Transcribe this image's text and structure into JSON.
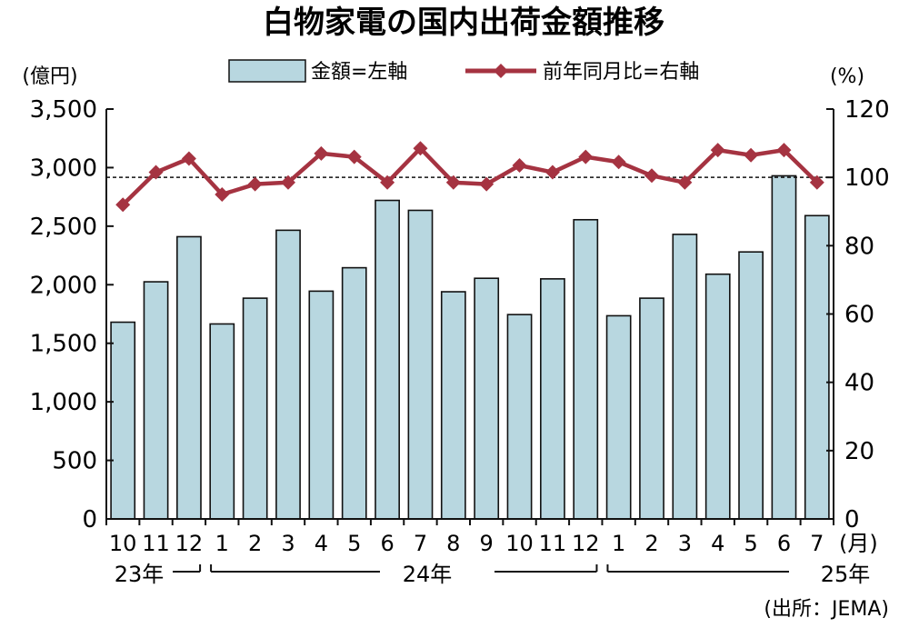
{
  "chart_data": {
    "type": "bar",
    "title": "白物家電の国内出荷金額推移",
    "left_unit": "(億円)",
    "right_unit": "(%)",
    "month_suffix": "(月)",
    "legend": [
      {
        "label": "金額=左軸",
        "kind": "bar",
        "color": "#b8d7e0"
      },
      {
        "label": "前年同月比=右軸",
        "kind": "line",
        "color": "#a53341"
      }
    ],
    "categories": [
      "10",
      "11",
      "12",
      "1",
      "2",
      "3",
      "4",
      "5",
      "6",
      "7",
      "8",
      "9",
      "10",
      "11",
      "12",
      "1",
      "2",
      "3",
      "4",
      "5",
      "6",
      "7"
    ],
    "year_labels": [
      "23年",
      "24年",
      "25年"
    ],
    "series": [
      {
        "name": "金額=左軸",
        "type": "bar",
        "axis": "left",
        "values": [
          1680,
          2025,
          2410,
          1665,
          1885,
          2465,
          1945,
          2145,
          2720,
          2635,
          1940,
          2055,
          1745,
          2050,
          2555,
          1735,
          1885,
          2430,
          2090,
          2280,
          2930,
          2590
        ]
      },
      {
        "name": "前年同月比=右軸",
        "type": "line",
        "axis": "right",
        "values": [
          92,
          101.5,
          105.5,
          95,
          98,
          98.5,
          107,
          106,
          98.5,
          108.5,
          98.5,
          98,
          103.5,
          101.5,
          106,
          104.5,
          100.5,
          98.5,
          108,
          106.5,
          108,
          98.5
        ]
      }
    ],
    "left_axis": {
      "ylim": [
        0,
        3500
      ],
      "ticks": [
        "0",
        "500",
        "1,000",
        "1,500",
        "2,000",
        "2,500",
        "3,000",
        "3,500"
      ]
    },
    "right_axis": {
      "ylim": [
        0,
        120
      ],
      "ticks": [
        "0",
        "20",
        "40",
        "60",
        "80",
        "100",
        "120"
      ]
    },
    "reference_line": {
      "axis": "right",
      "value": 100,
      "style": "dashed"
    },
    "grid": false,
    "bar_color": "#b8d7e0",
    "bar_stroke": "#111111",
    "line_color": "#a53341",
    "source": "(出所：JEMA)"
  }
}
